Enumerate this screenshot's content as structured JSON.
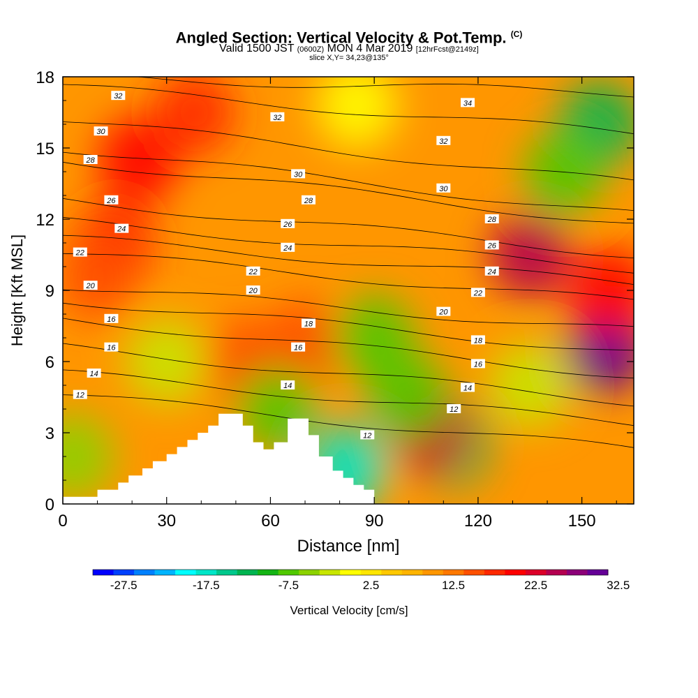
{
  "chart_data": {
    "type": "heatmap",
    "title": "Angled Section: Vertical Velocity & Pot.Temp.",
    "title_mark": "(C)",
    "subtitle": {
      "valid": "Valid 1500 JST",
      "utc": "(0600Z)",
      "date": "MON 4 Mar 2019",
      "forecast": "[12hrFcst@2149z]"
    },
    "slice_label": "slice X,Y= 34,23@135°",
    "xlabel": "Distance [nm]",
    "ylabel": "Height [Kft MSL]",
    "xlim": [
      0,
      165
    ],
    "ylim": [
      0,
      18
    ],
    "x_ticks": [
      0,
      30,
      60,
      90,
      120,
      150
    ],
    "y_ticks": [
      0,
      3,
      6,
      9,
      12,
      15,
      18
    ],
    "grid": false,
    "colorbar": {
      "label": "Vertical Velocity [cm/s]",
      "tick_labels": [
        "-27.5",
        "-17.5",
        "-7.5",
        "2.5",
        "12.5",
        "22.5",
        "32.5"
      ],
      "colors": [
        "#0000ff",
        "#0040ff",
        "#0080ff",
        "#00b4ff",
        "#00ffff",
        "#00e6c8",
        "#00c88c",
        "#00b450",
        "#14b414",
        "#50c800",
        "#8cd200",
        "#c8e600",
        "#ffff00",
        "#ffe600",
        "#ffc800",
        "#ffb400",
        "#ff9600",
        "#ff7800",
        "#ff5000",
        "#ff2800",
        "#ff0000",
        "#dc0028",
        "#b40050",
        "#8c0078",
        "#640096"
      ]
    },
    "velocity_cells": [
      {
        "x": 15,
        "z": 11.0,
        "v": 17
      },
      {
        "x": 22,
        "z": 14.5,
        "v": 20
      },
      {
        "x": 38,
        "z": 16.5,
        "v": 17
      },
      {
        "x": 10,
        "z": 9.5,
        "v": 14
      },
      {
        "x": 52,
        "z": 6.0,
        "v": 15
      },
      {
        "x": 70,
        "z": 6.8,
        "v": 15
      },
      {
        "x": 82,
        "z": 1.5,
        "v": -17
      },
      {
        "x": 90,
        "z": 7.0,
        "v": -8
      },
      {
        "x": 112,
        "z": 2.5,
        "v": -12
      },
      {
        "x": 106,
        "z": 3.0,
        "v": 22
      },
      {
        "x": 100,
        "z": 4.5,
        "v": -8
      },
      {
        "x": 62,
        "z": 4.0,
        "v": -8
      },
      {
        "x": 135,
        "z": 10.5,
        "v": 24
      },
      {
        "x": 157,
        "z": 6.5,
        "v": 33
      },
      {
        "x": 155,
        "z": 16.0,
        "v": -12
      },
      {
        "x": 145,
        "z": 14.0,
        "v": -7
      },
      {
        "x": 158,
        "z": 9.0,
        "v": 20
      },
      {
        "x": 30,
        "z": 6.0,
        "v": -2
      },
      {
        "x": 3,
        "z": 2.0,
        "v": -6
      },
      {
        "x": 135,
        "z": 5.0,
        "v": -3
      },
      {
        "x": 85,
        "z": 16.8,
        "v": 0
      }
    ],
    "theta_contours": [
      {
        "label": "12",
        "z0": 4.6,
        "z_end": 2.3
      },
      {
        "label": "14",
        "z0": 5.5,
        "z_end": 3.4
      },
      {
        "label": "16",
        "z0": 6.6,
        "z_end": 4.3
      },
      {
        "label": "16",
        "z0": 7.8,
        "z_end": 5.4
      },
      {
        "label": "18",
        "z0": 8.6,
        "z_end": 6.4
      },
      {
        "label": "20",
        "z0": 9.2,
        "z_end": 7.3
      },
      {
        "label": "22",
        "z0": 10.6,
        "z_end": 8.5
      },
      {
        "label": "22",
        "z0": 11.2,
        "z_end": 9.3
      },
      {
        "label": "24",
        "z0": 11.9,
        "z_end": 9.9
      },
      {
        "label": "26",
        "z0": 12.8,
        "z_end": 10.5
      },
      {
        "label": "28",
        "z0": 14.5,
        "z_end": 11.8
      },
      {
        "label": "28",
        "z0": 15.0,
        "z_end": 12.2
      },
      {
        "label": "30",
        "z0": 16.2,
        "z_end": 13.5
      },
      {
        "label": "32",
        "z0": 17.6,
        "z_end": 15.6
      },
      {
        "label": "34",
        "z0": 18.0,
        "z_end": 17.3
      }
    ],
    "contour_labels": [
      {
        "text": "32",
        "x": 16,
        "z": 17.2
      },
      {
        "text": "30",
        "x": 11,
        "z": 15.7
      },
      {
        "text": "28",
        "x": 8,
        "z": 14.5
      },
      {
        "text": "26",
        "x": 14,
        "z": 12.8
      },
      {
        "text": "24",
        "x": 17,
        "z": 11.6
      },
      {
        "text": "22",
        "x": 5,
        "z": 10.6
      },
      {
        "text": "20",
        "x": 8,
        "z": 9.2
      },
      {
        "text": "16",
        "x": 14,
        "z": 7.8
      },
      {
        "text": "16",
        "x": 14,
        "z": 6.6
      },
      {
        "text": "14",
        "x": 9,
        "z": 5.5
      },
      {
        "text": "12",
        "x": 5,
        "z": 4.6
      },
      {
        "text": "32",
        "x": 62,
        "z": 16.3
      },
      {
        "text": "30",
        "x": 68,
        "z": 13.9
      },
      {
        "text": "28",
        "x": 71,
        "z": 12.8
      },
      {
        "text": "26",
        "x": 65,
        "z": 11.8
      },
      {
        "text": "24",
        "x": 65,
        "z": 10.8
      },
      {
        "text": "22",
        "x": 55,
        "z": 9.8
      },
      {
        "text": "20",
        "x": 55,
        "z": 9.0
      },
      {
        "text": "18",
        "x": 71,
        "z": 7.6
      },
      {
        "text": "16",
        "x": 68,
        "z": 6.6
      },
      {
        "text": "14",
        "x": 65,
        "z": 5.0
      },
      {
        "text": "12",
        "x": 88,
        "z": 2.9
      },
      {
        "text": "34",
        "x": 117,
        "z": 16.9
      },
      {
        "text": "32",
        "x": 110,
        "z": 15.3
      },
      {
        "text": "30",
        "x": 110,
        "z": 13.3
      },
      {
        "text": "28",
        "x": 124,
        "z": 12.0
      },
      {
        "text": "26",
        "x": 124,
        "z": 10.9
      },
      {
        "text": "24",
        "x": 124,
        "z": 9.8
      },
      {
        "text": "22",
        "x": 120,
        "z": 8.9
      },
      {
        "text": "20",
        "x": 110,
        "z": 8.1
      },
      {
        "text": "18",
        "x": 120,
        "z": 6.9
      },
      {
        "text": "16",
        "x": 120,
        "z": 5.9
      },
      {
        "text": "14",
        "x": 117,
        "z": 4.9
      },
      {
        "text": "12",
        "x": 113,
        "z": 4.0
      }
    ],
    "terrain": [
      [
        0,
        0
      ],
      [
        0,
        0.3
      ],
      [
        10,
        0.3
      ],
      [
        10,
        0.6
      ],
      [
        16,
        0.6
      ],
      [
        16,
        0.9
      ],
      [
        19,
        0.9
      ],
      [
        19,
        1.2
      ],
      [
        23,
        1.2
      ],
      [
        23,
        1.5
      ],
      [
        26,
        1.5
      ],
      [
        26,
        1.8
      ],
      [
        30,
        1.8
      ],
      [
        30,
        2.1
      ],
      [
        33,
        2.1
      ],
      [
        33,
        2.4
      ],
      [
        36,
        2.4
      ],
      [
        36,
        2.7
      ],
      [
        39,
        2.7
      ],
      [
        39,
        3.0
      ],
      [
        42,
        3.0
      ],
      [
        42,
        3.3
      ],
      [
        45,
        3.3
      ],
      [
        45,
        3.8
      ],
      [
        52,
        3.8
      ],
      [
        52,
        3.3
      ],
      [
        55,
        3.3
      ],
      [
        55,
        2.6
      ],
      [
        58,
        2.6
      ],
      [
        58,
        2.3
      ],
      [
        61,
        2.3
      ],
      [
        61,
        2.6
      ],
      [
        65,
        2.6
      ],
      [
        65,
        3.6
      ],
      [
        71,
        3.6
      ],
      [
        71,
        2.9
      ],
      [
        74,
        2.9
      ],
      [
        74,
        2.0
      ],
      [
        78,
        2.0
      ],
      [
        78,
        1.4
      ],
      [
        81,
        1.4
      ],
      [
        81,
        1.1
      ],
      [
        84,
        1.1
      ],
      [
        84,
        0.8
      ],
      [
        87,
        0.8
      ],
      [
        87,
        0.6
      ],
      [
        90,
        0.6
      ],
      [
        90,
        0
      ],
      [
        0,
        0
      ]
    ]
  }
}
